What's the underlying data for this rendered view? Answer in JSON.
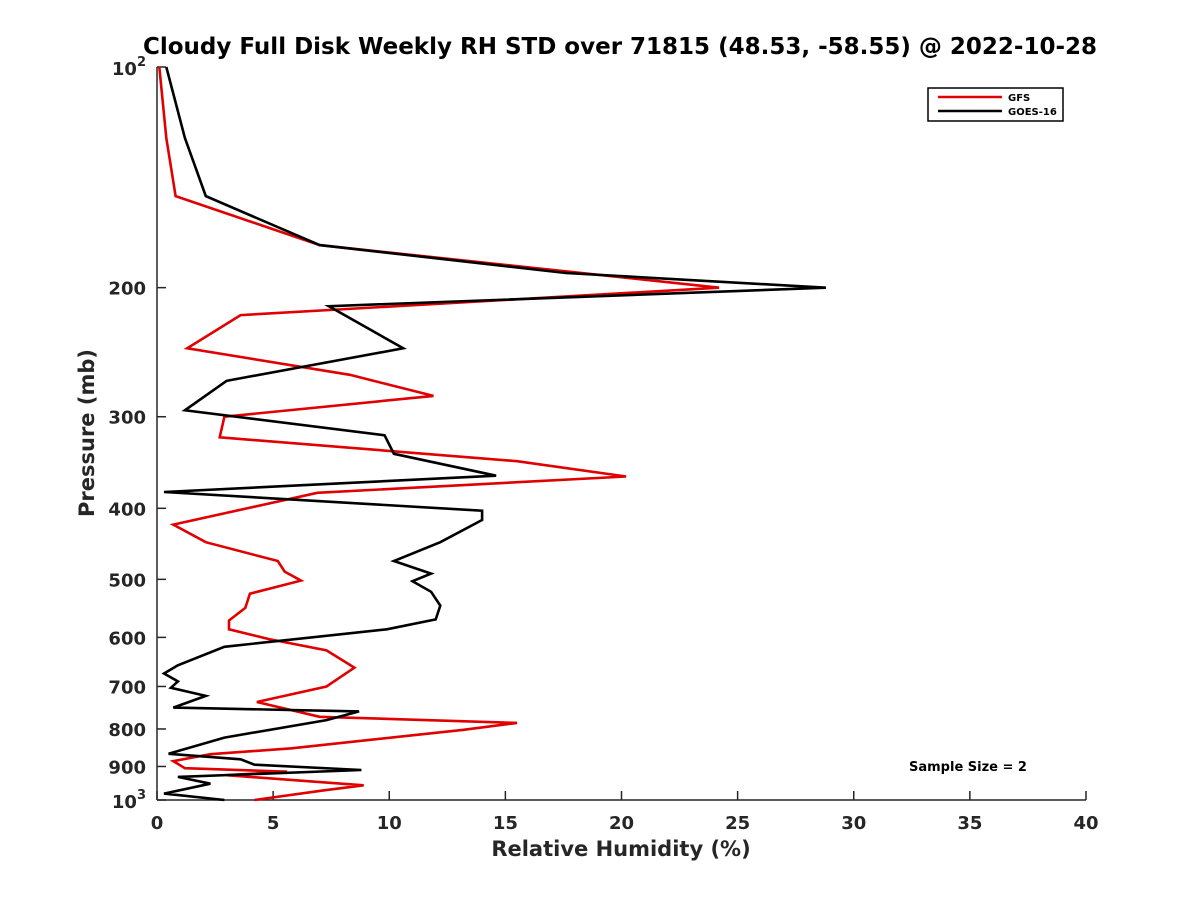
{
  "chart_data": {
    "type": "line",
    "title": "Cloudy Full Disk Weekly RH STD over 71815 (48.53, -58.55) @ 2022-10-28",
    "xlabel": "Relative Humidity (%)",
    "ylabel": "Pressure (mb)",
    "xlim": [
      0,
      40
    ],
    "ylim": [
      100,
      1000
    ],
    "y_scale": "log",
    "y_reversed": true,
    "grid": false,
    "legend_position": "top-right",
    "x_ticks": [
      "0",
      "5",
      "10",
      "15",
      "20",
      "25",
      "30",
      "35",
      "40"
    ],
    "y_ticks": [
      {
        "value": 100,
        "base": "10",
        "sup": "2"
      },
      {
        "value": 200,
        "label": "200"
      },
      {
        "value": 300,
        "label": "300"
      },
      {
        "value": 400,
        "label": "400"
      },
      {
        "value": 500,
        "label": "500"
      },
      {
        "value": 600,
        "label": "600"
      },
      {
        "value": 700,
        "label": "700"
      },
      {
        "value": 800,
        "label": "800"
      },
      {
        "value": 900,
        "label": "900"
      },
      {
        "value": 1000,
        "base": "10",
        "sup": "3"
      }
    ],
    "annotation": "Sample Size = 2",
    "series": [
      {
        "name": "GFS",
        "color": "#e00000",
        "points": [
          [
            0.1,
            100
          ],
          [
            0.4,
            125
          ],
          [
            0.8,
            150
          ],
          [
            7.0,
            175
          ],
          [
            24.2,
            200
          ],
          [
            3.6,
            218
          ],
          [
            1.3,
            242
          ],
          [
            8.3,
            263
          ],
          [
            11.9,
            281
          ],
          [
            2.9,
            300
          ],
          [
            2.7,
            320
          ],
          [
            15.5,
            345
          ],
          [
            20.2,
            362
          ],
          [
            6.9,
            381
          ],
          [
            0.7,
            421
          ],
          [
            2.1,
            445
          ],
          [
            5.2,
            472
          ],
          [
            5.5,
            488
          ],
          [
            6.2,
            502
          ],
          [
            4.0,
            523
          ],
          [
            3.8,
            547
          ],
          [
            3.1,
            569
          ],
          [
            3.1,
            585
          ],
          [
            4.8,
            603
          ],
          [
            7.3,
            625
          ],
          [
            8.5,
            660
          ],
          [
            7.8,
            683
          ],
          [
            7.3,
            700
          ],
          [
            4.3,
            735
          ],
          [
            7.0,
            770
          ],
          [
            15.5,
            785
          ],
          [
            13.2,
            802
          ],
          [
            5.8,
            850
          ],
          [
            2.3,
            866
          ],
          [
            0.7,
            885
          ],
          [
            1.2,
            905
          ],
          [
            5.6,
            915
          ],
          [
            3.0,
            925
          ],
          [
            8.9,
            955
          ],
          [
            7.2,
            970
          ],
          [
            4.2,
            1000
          ]
        ]
      },
      {
        "name": "GOES-16",
        "color": "#000000",
        "points": [
          [
            0.4,
            100
          ],
          [
            1.2,
            125
          ],
          [
            2.1,
            150
          ],
          [
            7.0,
            175
          ],
          [
            17.6,
            191
          ],
          [
            28.8,
            200
          ],
          [
            7.4,
            212
          ],
          [
            10.6,
            242
          ],
          [
            3.0,
            268
          ],
          [
            1.2,
            294
          ],
          [
            9.8,
            318
          ],
          [
            10.2,
            337
          ],
          [
            14.6,
            361
          ],
          [
            0.3,
            380
          ],
          [
            14.0,
            403
          ],
          [
            14.0,
            415
          ],
          [
            12.2,
            445
          ],
          [
            10.2,
            472
          ],
          [
            11.8,
            491
          ],
          [
            11.0,
            503
          ],
          [
            11.8,
            520
          ],
          [
            12.2,
            543
          ],
          [
            12.0,
            567
          ],
          [
            9.9,
            585
          ],
          [
            2.9,
            618
          ],
          [
            0.9,
            655
          ],
          [
            0.3,
            672
          ],
          [
            0.9,
            689
          ],
          [
            0.6,
            703
          ],
          [
            2.1,
            721
          ],
          [
            0.7,
            748
          ],
          [
            8.7,
            757
          ],
          [
            7.3,
            778
          ],
          [
            2.9,
            822
          ],
          [
            0.5,
            865
          ],
          [
            3.6,
            880
          ],
          [
            4.2,
            895
          ],
          [
            8.8,
            910
          ],
          [
            0.9,
            930
          ],
          [
            2.3,
            950
          ],
          [
            0.3,
            980
          ],
          [
            2.9,
            1000
          ]
        ]
      }
    ]
  }
}
